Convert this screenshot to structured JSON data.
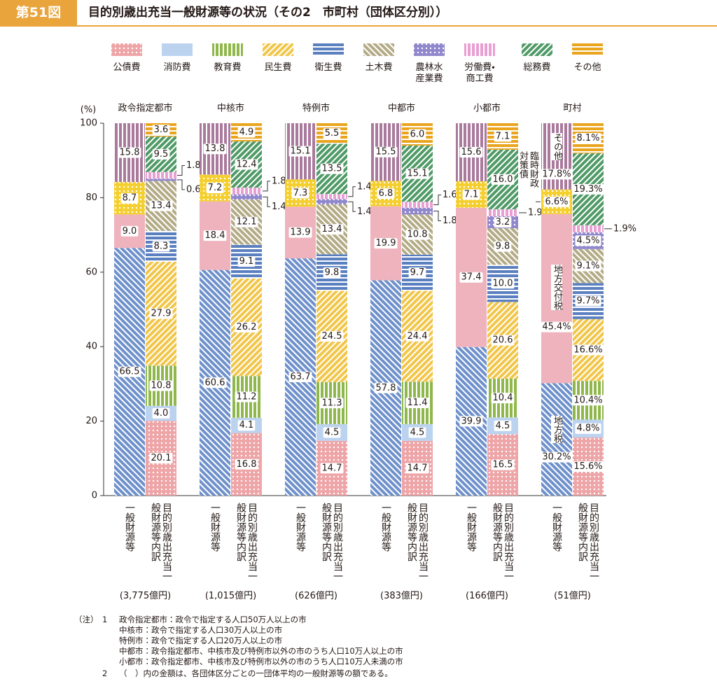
{
  "header": {
    "figure": "第51図",
    "title": "目的別歳出充当一般財源等の状況（その2　市町村（団体区分別））"
  },
  "chart_data": {
    "type": "grouped_stacked_bar",
    "y_unit_label": "(%)",
    "ylim": [
      0,
      100
    ],
    "yticks": [
      0,
      20,
      40,
      60,
      80,
      100
    ],
    "groups": [
      "政令指定都市",
      "中核市",
      "特例市",
      "中都市",
      "小都市",
      "町村"
    ],
    "group_amounts": [
      "(3,775億円)",
      "(1,015億円)",
      "(626億円)",
      "(383億円)",
      "(166億円)",
      "(51億円)"
    ],
    "bar_labels": [
      "一般財源等",
      "目的別歳出充当一般財源等内訳"
    ],
    "revenue_series": [
      {
        "name": "地方税",
        "color": "#6f91cb",
        "pattern": "diag2",
        "values": [
          66.5,
          60.6,
          63.7,
          57.8,
          39.9,
          30.2
        ],
        "value_labels": [
          "66.5",
          "60.6",
          "63.7",
          "57.8",
          "39.9",
          "30.2%"
        ]
      },
      {
        "name": "地方交付税",
        "color": "#efb3bd",
        "pattern": "solid",
        "values": [
          9.0,
          18.4,
          13.9,
          19.9,
          37.4,
          45.4
        ],
        "value_labels": [
          "9.0",
          "18.4",
          "13.9",
          "19.9",
          "37.4",
          "45.4%"
        ]
      },
      {
        "name": "臨時財政対策債",
        "color": "#f4cf2e",
        "pattern": "dots",
        "values": [
          8.7,
          7.2,
          7.3,
          6.8,
          7.1,
          6.6
        ],
        "value_labels": [
          "8.7",
          "7.2",
          "7.3",
          "6.8",
          "7.1",
          "6.6%"
        ]
      },
      {
        "name": "その他",
        "color": "#a97a9c",
        "pattern": "vlines",
        "values": [
          15.8,
          13.8,
          15.1,
          15.5,
          15.6,
          17.8
        ],
        "value_labels": [
          "15.8",
          "13.8",
          "15.1",
          "15.5",
          "15.6",
          "17.8%"
        ]
      }
    ],
    "series": [
      {
        "name": "公債費",
        "color": "#eea5a8",
        "pattern": "dots",
        "values": [
          20.1,
          16.8,
          14.7,
          14.7,
          16.5,
          15.6
        ],
        "value_labels": [
          "20.1",
          "16.8",
          "14.7",
          "14.7",
          "16.5",
          "15.6%"
        ]
      },
      {
        "name": "消防費",
        "color": "#bcd3ef",
        "pattern": "solid",
        "values": [
          4.0,
          4.1,
          4.5,
          4.5,
          4.5,
          4.8
        ],
        "value_labels": [
          "4.0",
          "4.1",
          "4.5",
          "4.5",
          "4.5",
          "4.8%"
        ]
      },
      {
        "name": "教育費",
        "color": "#8fb74c",
        "pattern": "vlines",
        "values": [
          10.8,
          11.2,
          11.3,
          11.4,
          10.4,
          10.4
        ],
        "value_labels": [
          "10.8",
          "11.2",
          "11.3",
          "11.4",
          "10.4",
          "10.4%"
        ]
      },
      {
        "name": "民生費",
        "color": "#f1c64a",
        "pattern": "diag",
        "values": [
          27.9,
          26.2,
          24.5,
          24.4,
          20.6,
          16.6
        ],
        "value_labels": [
          "27.9",
          "26.2",
          "24.5",
          "24.4",
          "20.6",
          "16.6%"
        ]
      },
      {
        "name": "衛生費",
        "color": "#5b80c0",
        "pattern": "hlines",
        "values": [
          8.3,
          9.1,
          9.8,
          9.7,
          10.0,
          9.7
        ],
        "value_labels": [
          "8.3",
          "9.1",
          "9.8",
          "9.7",
          "10.0",
          "9.7%"
        ]
      },
      {
        "name": "土木費",
        "color": "#b3ab86",
        "pattern": "diag2",
        "values": [
          13.4,
          12.1,
          13.4,
          10.8,
          9.8,
          9.1
        ],
        "value_labels": [
          "13.4",
          "12.1",
          "13.4",
          "10.8",
          "9.8",
          "9.1%"
        ]
      },
      {
        "name": "農林水産業費",
        "color": "#9088cc",
        "pattern": "dots",
        "values": [
          0.6,
          1.4,
          1.4,
          1.8,
          3.2,
          4.5
        ],
        "value_labels": [
          "0.6",
          "1.4",
          "1.4",
          "1.8",
          "3.2",
          "4.5%"
        ]
      },
      {
        "name": "労働費・商工費",
        "color": "#e89fd2",
        "pattern": "vlines",
        "values": [
          1.8,
          1.8,
          1.4,
          1.6,
          1.9,
          1.9
        ],
        "value_labels": [
          "1.8",
          "1.8",
          "1.4",
          "1.6",
          "1.9",
          "1.9%"
        ]
      },
      {
        "name": "総務費",
        "color": "#4f9a66",
        "pattern": "diag",
        "values": [
          9.5,
          12.4,
          13.5,
          15.1,
          16.0,
          19.3
        ],
        "value_labels": [
          "9.5",
          "12.4",
          "13.5",
          "15.1",
          "16.0",
          "19.3%"
        ]
      },
      {
        "name": "その他",
        "color": "#eaa51f",
        "pattern": "hlines",
        "values": [
          3.6,
          4.9,
          5.5,
          6.0,
          7.1,
          8.1
        ],
        "value_labels": [
          "3.6",
          "4.9",
          "5.5",
          "6.0",
          "7.1",
          "8.1%"
        ]
      }
    ]
  },
  "notes": {
    "label": "（注）",
    "items": [
      {
        "number": "1",
        "lines": [
          "政令指定都市：政令で指定する人口50万人以上の市",
          "中核市：政令で指定する人口30万人以上の市",
          "特例市：政令で指定する人口20万人以上の市",
          "中都市：政令指定都市、中核市及び特例市以外の市のうち人口10万人以上の市",
          "小都市：政令指定都市、中核市及び特例市以外の市のうち人口10万人未満の市"
        ]
      },
      {
        "number": "2",
        "lines": [
          "（　）内の金額は、各団体区分ごとの一団体平均の一般財源等の額である。"
        ]
      }
    ]
  }
}
